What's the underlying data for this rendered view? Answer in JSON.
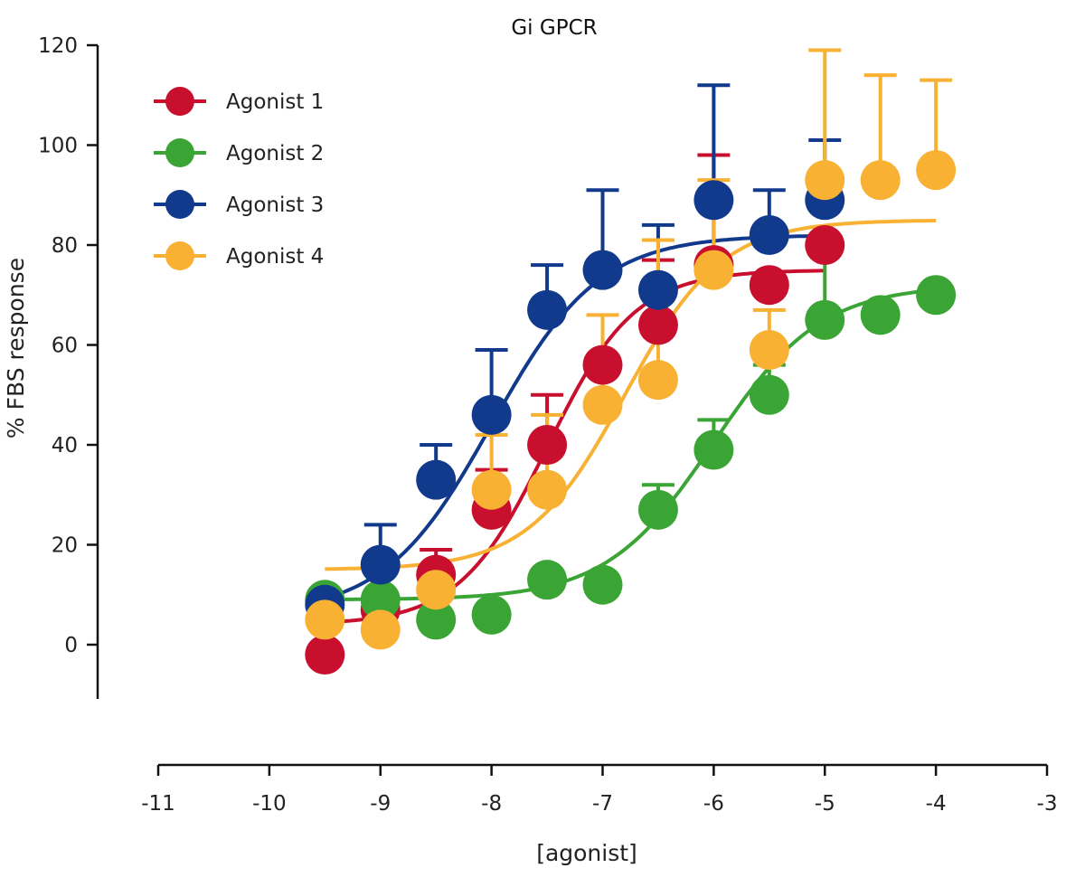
{
  "chart_data": {
    "type": "scatter",
    "title": "Gi GPCR",
    "xlabel": "[agonist]",
    "ylabel": "% FBS response",
    "xlim": [
      -11,
      -3
    ],
    "ylim": [
      -10,
      120
    ],
    "xticks": [
      "-11",
      "-10",
      "-9",
      "-8",
      "-7",
      "-6",
      "-5",
      "-4",
      "-3"
    ],
    "yticks": [
      "0",
      "20",
      "40",
      "60",
      "80",
      "100",
      "120"
    ],
    "grid": false,
    "legend": "top-left",
    "series": [
      {
        "name": "Agonist 1",
        "color": "#c8102e",
        "x": [
          -9.5,
          -9,
          -8.5,
          -8,
          -7.5,
          -7,
          -6.5,
          -6,
          -5.5,
          -5
        ],
        "y": [
          -2,
          7,
          14,
          27,
          40,
          56,
          64,
          76,
          72,
          80
        ],
        "err": [
          0,
          0,
          5,
          8,
          10,
          0,
          13,
          22,
          0,
          0
        ],
        "fit": {
          "bottom": 4,
          "top": 75,
          "logec50": -7.5,
          "hill": 1.1,
          "from": -9.5,
          "to": -5
        }
      },
      {
        "name": "Agonist 2",
        "color": "#3aa535",
        "x": [
          -9.5,
          -9,
          -8.5,
          -8,
          -7.5,
          -7,
          -6.5,
          -6,
          -5.5,
          -5,
          -4.5,
          -4
        ],
        "y": [
          9,
          9,
          5,
          6,
          13,
          12,
          27,
          39,
          50,
          65,
          66,
          70
        ],
        "err": [
          0,
          0,
          0,
          0,
          0,
          0,
          5,
          6,
          6,
          15,
          0,
          0
        ],
        "fit": {
          "bottom": 9,
          "top": 72,
          "logec50": -6.0,
          "hill": 0.9,
          "from": -9.5,
          "to": -4
        }
      },
      {
        "name": "Agonist 3",
        "color": "#123a8c",
        "x": [
          -9.5,
          -9,
          -8.5,
          -8,
          -7.5,
          -7,
          -6.5,
          -6,
          -5.5,
          -5
        ],
        "y": [
          8,
          16,
          33,
          46,
          67,
          75,
          71,
          89,
          82,
          89
        ],
        "err": [
          0,
          8,
          7,
          13,
          9,
          16,
          13,
          23,
          9,
          12
        ],
        "fit": {
          "bottom": 6,
          "top": 82,
          "logec50": -8.0,
          "hill": 0.9,
          "from": -9.5,
          "to": -5
        }
      },
      {
        "name": "Agonist 4",
        "color": "#f8b132",
        "x": [
          -9.5,
          -9,
          -8.5,
          -8,
          -7.5,
          -7,
          -6.5,
          -6,
          -5.5,
          -5,
          -4.5,
          -4
        ],
        "y": [
          5,
          3,
          11,
          31,
          31,
          48,
          53,
          75,
          59,
          93,
          93,
          95
        ],
        "err": [
          0,
          0,
          0,
          11,
          15,
          18,
          28,
          18,
          8,
          26,
          21,
          18
        ],
        "fit": {
          "bottom": 15,
          "top": 85,
          "logec50": -6.8,
          "hill": 1.0,
          "from": -9.5,
          "to": -4
        }
      }
    ]
  }
}
